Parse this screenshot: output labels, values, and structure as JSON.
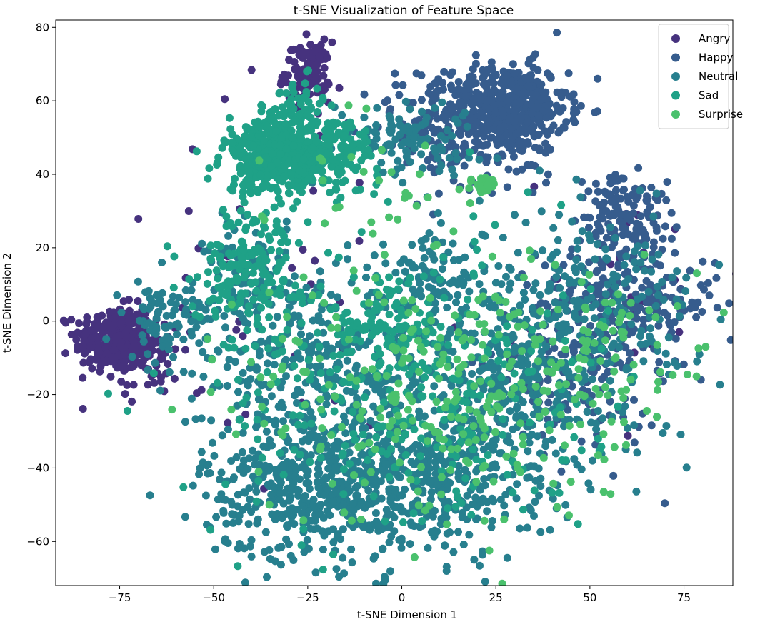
{
  "chart_data": {
    "type": "scatter",
    "title": "t-SNE Visualization of Feature Space",
    "xlabel": "t-SNE Dimension 1",
    "ylabel": "t-SNE Dimension 2",
    "xlim": [
      -92,
      88
    ],
    "ylim": [
      -72,
      82
    ],
    "xticks": [
      -75,
      -50,
      -25,
      0,
      25,
      50,
      75
    ],
    "xtick_labels": [
      "−75",
      "−50",
      "−25",
      "0",
      "25",
      "50",
      "75"
    ],
    "yticks": [
      -60,
      -40,
      -20,
      0,
      20,
      40,
      60,
      80
    ],
    "ytick_labels": [
      "−60",
      "−40",
      "−20",
      "0",
      "20",
      "40",
      "60",
      "80"
    ],
    "grid": false,
    "legend_position": "top-right",
    "series": [
      {
        "name": "Angry",
        "color": "#46327e",
        "clusters": [
          {
            "cx": -77,
            "cy": -5,
            "sx": 5,
            "sy": 4.5,
            "n": 260
          },
          {
            "cx": -68,
            "cy": -8,
            "sx": 5,
            "sy": 6,
            "n": 90
          },
          {
            "cx": -25,
            "cy": 68,
            "sx": 3,
            "sy": 4,
            "n": 110
          },
          {
            "cx": -30,
            "cy": 5,
            "sx": 25,
            "sy": 30,
            "n": 40
          },
          {
            "cx": 60,
            "cy": 10,
            "sx": 15,
            "sy": 15,
            "n": 25
          }
        ]
      },
      {
        "name": "Happy",
        "color": "#365c8d",
        "clusters": [
          {
            "cx": 28,
            "cy": 58,
            "sx": 8,
            "sy": 6,
            "n": 480
          },
          {
            "cx": 10,
            "cy": 55,
            "sx": 10,
            "sy": 6,
            "n": 90
          },
          {
            "cx": 62,
            "cy": 28,
            "sx": 6,
            "sy": 5,
            "n": 90
          },
          {
            "cx": 55,
            "cy": 34,
            "sx": 4,
            "sy": 5,
            "n": 40
          },
          {
            "cx": 60,
            "cy": 5,
            "sx": 12,
            "sy": 8,
            "n": 220
          },
          {
            "cx": 45,
            "cy": -15,
            "sx": 12,
            "sy": 12,
            "n": 130
          },
          {
            "cx": 20,
            "cy": 45,
            "sx": 10,
            "sy": 6,
            "n": 60
          }
        ]
      },
      {
        "name": "Neutral",
        "color": "#277f8e",
        "clusters": [
          {
            "cx": -25,
            "cy": -45,
            "sx": 14,
            "sy": 10,
            "n": 420
          },
          {
            "cx": 5,
            "cy": -45,
            "sx": 15,
            "sy": 10,
            "n": 320
          },
          {
            "cx": 30,
            "cy": -20,
            "sx": 18,
            "sy": 15,
            "n": 380
          },
          {
            "cx": -20,
            "cy": -15,
            "sx": 15,
            "sy": 12,
            "n": 320
          },
          {
            "cx": 50,
            "cy": 5,
            "sx": 15,
            "sy": 12,
            "n": 200
          },
          {
            "cx": -62,
            "cy": 0,
            "sx": 6,
            "sy": 6,
            "n": 90
          },
          {
            "cx": 0,
            "cy": 50,
            "sx": 10,
            "sy": 5,
            "n": 110
          },
          {
            "cx": 10,
            "cy": 10,
            "sx": 8,
            "sy": 8,
            "n": 110
          },
          {
            "cx": -40,
            "cy": 10,
            "sx": 6,
            "sy": 10,
            "n": 110
          }
        ]
      },
      {
        "name": "Sad",
        "color": "#1fa187",
        "clusters": [
          {
            "cx": -33,
            "cy": 45,
            "sx": 7,
            "sy": 5,
            "n": 420
          },
          {
            "cx": -20,
            "cy": 45,
            "sx": 7,
            "sy": 5,
            "n": 150
          },
          {
            "cx": -28,
            "cy": 58,
            "sx": 4,
            "sy": 4,
            "n": 60
          },
          {
            "cx": -40,
            "cy": 15,
            "sx": 7,
            "sy": 8,
            "n": 170
          },
          {
            "cx": 0,
            "cy": -20,
            "sx": 25,
            "sy": 20,
            "n": 320
          },
          {
            "cx": -5,
            "cy": 0,
            "sx": 8,
            "sy": 8,
            "n": 90
          }
        ]
      },
      {
        "name": "Surprise",
        "color": "#4ac16d",
        "clusters": [
          {
            "cx": 22,
            "cy": 37,
            "sx": 1.5,
            "sy": 1.5,
            "n": 30
          },
          {
            "cx": 10,
            "cy": -20,
            "sx": 25,
            "sy": 18,
            "n": 280
          },
          {
            "cx": 50,
            "cy": -5,
            "sx": 12,
            "sy": 10,
            "n": 70
          },
          {
            "cx": -10,
            "cy": 40,
            "sx": 15,
            "sy": 10,
            "n": 30
          },
          {
            "cx": 1,
            "cy": 33.5,
            "sx": 0.3,
            "sy": 0.3,
            "n": 1
          }
        ]
      }
    ]
  }
}
